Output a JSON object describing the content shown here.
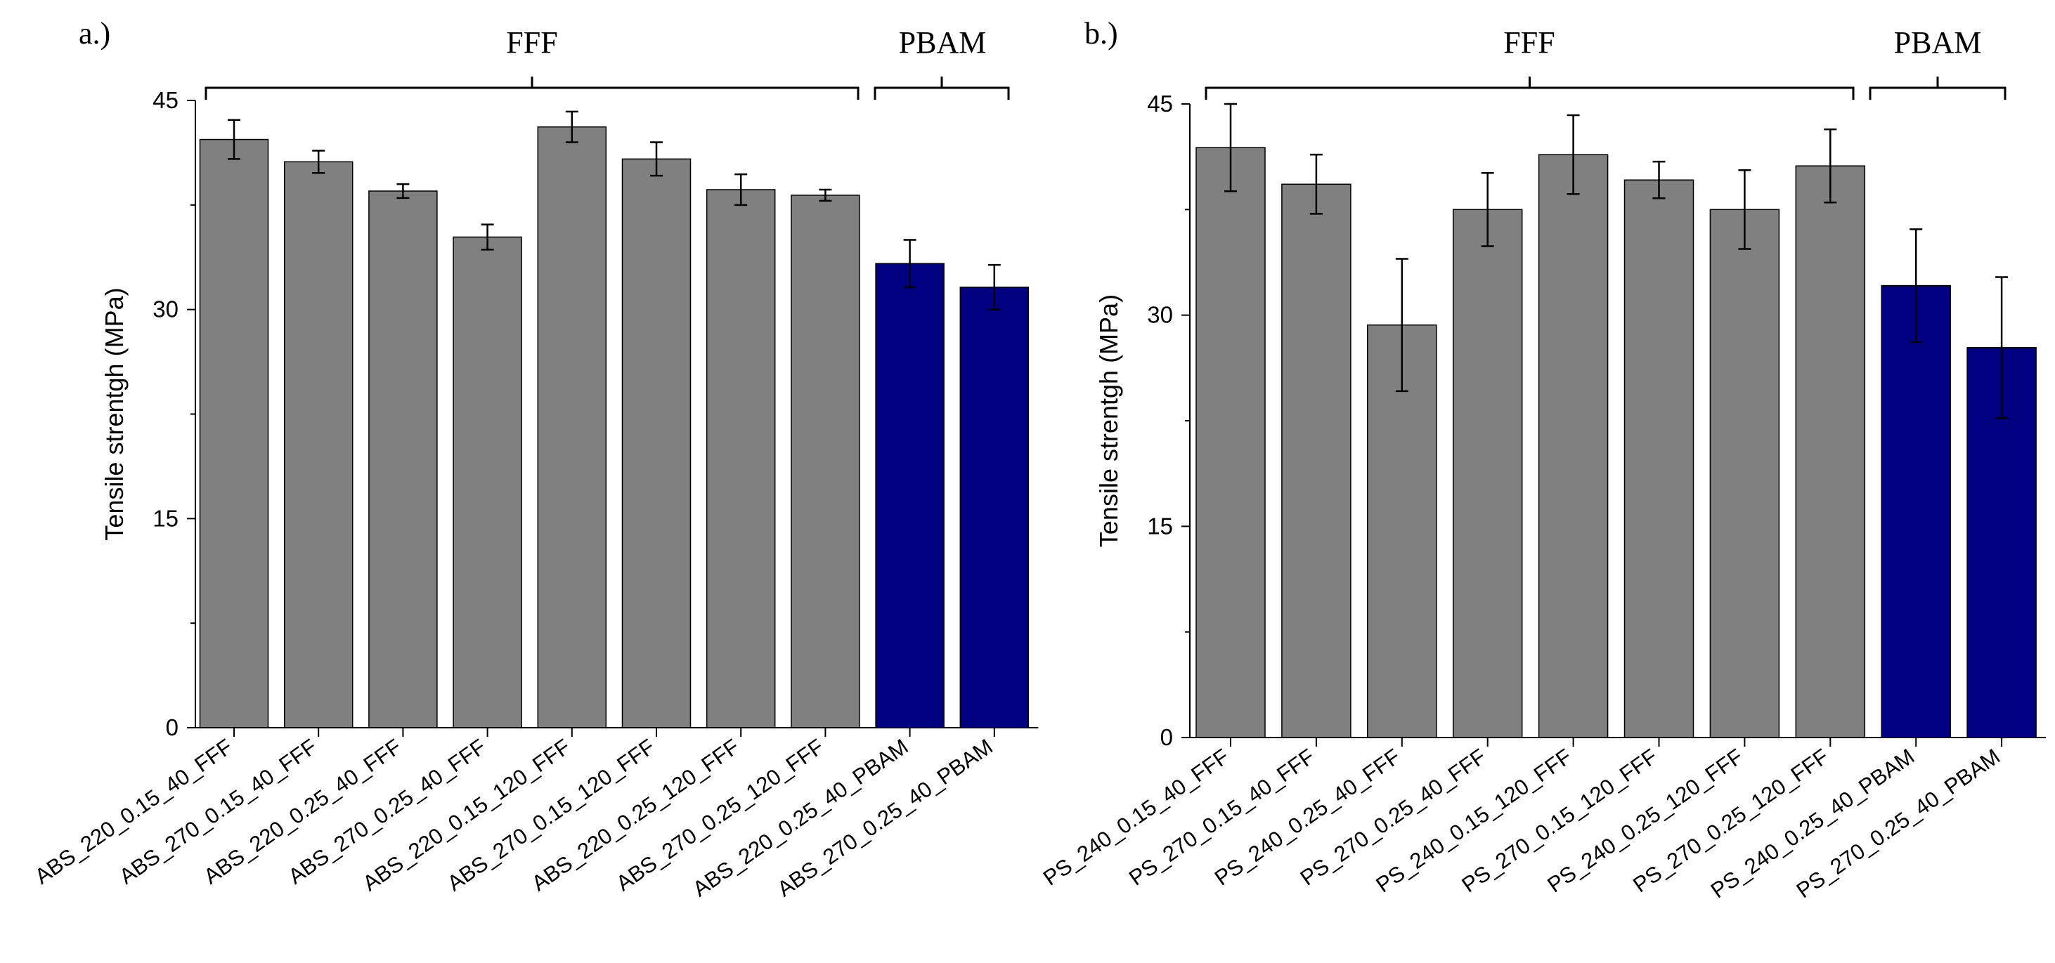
{
  "panels": [
    {
      "panel_label": "a.)",
      "group_labels": [
        "FFF",
        "PBAM"
      ]
    },
    {
      "panel_label": "b.)",
      "group_labels": [
        "FFF",
        "PBAM"
      ]
    }
  ],
  "colors": {
    "fff_bar": "#808080",
    "pbam_bar": "#000080",
    "axis": "#000000"
  },
  "chart_data": [
    {
      "type": "bar",
      "title": "",
      "xlabel": "",
      "ylabel": "Tensile strentgh (MPa)",
      "ylim": [
        0,
        45
      ],
      "yticks": [
        0,
        15,
        30,
        45
      ],
      "categories": [
        "ABS_220_0.15_40_FFF",
        "ABS_270_0.15_40_FFF",
        "ABS_220_0.25_40_FFF",
        "ABS_270_0.25_40_FFF",
        "ABS_220_0.15_120_FFF",
        "ABS_270_0.15_120_FFF",
        "ABS_220_0.25_120_FFF",
        "ABS_270_0.25_120_FFF",
        "ABS_220_0.25_40_PBAM",
        "ABS_270_0.25_40_PBAM"
      ],
      "values": [
        42.2,
        40.6,
        38.5,
        35.2,
        43.1,
        40.8,
        38.6,
        38.2,
        33.3,
        31.6
      ],
      "errors": [
        1.4,
        0.8,
        0.5,
        0.9,
        1.1,
        1.2,
        1.1,
        0.4,
        1.7,
        1.6
      ],
      "groups": [
        "FFF",
        "FFF",
        "FFF",
        "FFF",
        "FFF",
        "FFF",
        "FFF",
        "FFF",
        "PBAM",
        "PBAM"
      ]
    },
    {
      "type": "bar",
      "title": "",
      "xlabel": "",
      "ylabel": "Tensile strentgh (MPa)",
      "ylim": [
        0,
        45
      ],
      "yticks": [
        0,
        15,
        30,
        45
      ],
      "categories": [
        "PS_240_0.15_40_FFF",
        "PS_270_0.15_40_FFF",
        "PS_240_0.25_40_FFF",
        "PS_270_0.25_40_FFF",
        "PS_240_0.15_120_FFF",
        "PS_270_0.15_120_FFF",
        "PS_240_0.25_120_FFF",
        "PS_270_0.25_120_FFF",
        "PS_240_0.25_40_PBAM",
        "PS_270_0.25_40_PBAM"
      ],
      "values": [
        41.9,
        39.3,
        29.3,
        37.5,
        41.4,
        39.6,
        37.5,
        40.6,
        32.1,
        27.7
      ],
      "errors": [
        3.1,
        2.1,
        4.7,
        2.6,
        2.8,
        1.3,
        2.8,
        2.6,
        4.0,
        5.0
      ],
      "groups": [
        "FFF",
        "FFF",
        "FFF",
        "FFF",
        "FFF",
        "FFF",
        "FFF",
        "FFF",
        "PBAM",
        "PBAM"
      ]
    }
  ]
}
